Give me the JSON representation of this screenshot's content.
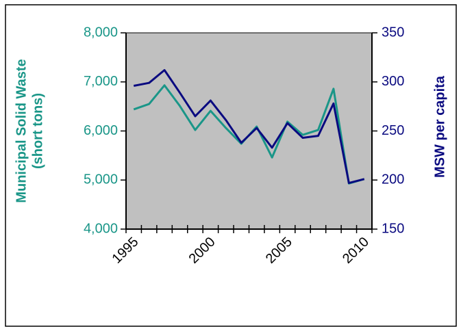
{
  "chart_data": {
    "type": "line",
    "categories": [
      "1995",
      null,
      null,
      null,
      null,
      "2000",
      null,
      null,
      null,
      null,
      "2005",
      null,
      null,
      null,
      null,
      "2010"
    ],
    "series": [
      {
        "name": "Municipal Solid Waste",
        "color": "#1a9688",
        "values": [
          6440,
          6550,
          6930,
          6510,
          6020,
          6410,
          6060,
          5740,
          6090,
          5460,
          6190,
          5920,
          6020,
          6860,
          4930,
          5020
        ]
      },
      {
        "name": "MSW per capita",
        "color": "#0a0a80",
        "axis": "y2",
        "values": [
          296,
          299,
          312,
          289,
          265,
          281,
          261,
          238,
          253,
          233,
          258,
          243,
          245,
          278,
          197,
          201
        ]
      }
    ],
    "y_label": [
      "Municipal Solid Waste",
      "(short tons)"
    ],
    "y2_label": "MSW per capita",
    "ylim": [
      4000,
      8000
    ],
    "yticks": [
      {
        "value": 4000,
        "label": "4,000"
      },
      {
        "value": 5000,
        "label": "5,000"
      },
      {
        "value": 6000,
        "label": "6,000"
      },
      {
        "value": 7000,
        "label": "7,000"
      },
      {
        "value": 8000,
        "label": "8,000"
      }
    ],
    "y2lim": [
      150,
      350
    ],
    "y2ticks": [
      150,
      200,
      250,
      300,
      350
    ],
    "plot_background": "#c0c0c0"
  }
}
